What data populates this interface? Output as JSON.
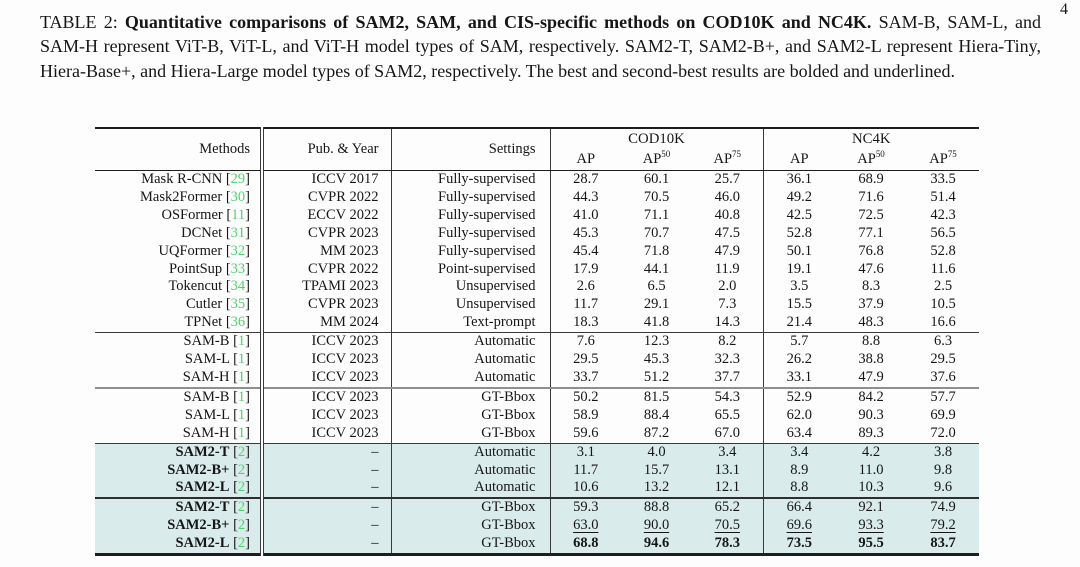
{
  "page_number": "4",
  "caption": {
    "label": "TABLE 2:",
    "bold_text": "Quantitative comparisons of SAM2, SAM, and CIS-specific methods on COD10K and NC4K.",
    "body_text": "SAM-B, SAM-L, and SAM-H represent ViT-B, ViT-L, and ViT-H model types of SAM, respectively. SAM2-T, SAM2-B+, and SAM2-L represent Hiera-Tiny, Hiera-Base+, and Hiera-Large model types of SAM2, respectively. The best and second-best results are bolded and underlined."
  },
  "colors": {
    "highlight_row": "#d9ebeb",
    "citation_green": "#53d170"
  },
  "table": {
    "headers": {
      "methods": "Methods",
      "pub_year": "Pub. & Year",
      "settings": "Settings",
      "dataset1": "COD10K",
      "dataset2": "NC4K"
    },
    "metric_headers": [
      {
        "base": "AP",
        "sup": ""
      },
      {
        "base": "AP",
        "sup": "50"
      },
      {
        "base": "AP",
        "sup": "75"
      }
    ],
    "rows": [
      {
        "method": "Mask R-CNN",
        "cite": "29",
        "pub": "ICCV 2017",
        "setting": "Fully-supervised",
        "values": [
          "28.7",
          "60.1",
          "25.7",
          "36.1",
          "68.9",
          "33.5"
        ]
      },
      {
        "method": "Mask2Former",
        "cite": "30",
        "pub": "CVPR 2022",
        "setting": "Fully-supervised",
        "values": [
          "44.3",
          "70.5",
          "46.0",
          "49.2",
          "71.6",
          "51.4"
        ]
      },
      {
        "method": "OSFormer",
        "cite": "11",
        "pub": "ECCV 2022",
        "setting": "Fully-supervised",
        "values": [
          "41.0",
          "71.1",
          "40.8",
          "42.5",
          "72.5",
          "42.3"
        ]
      },
      {
        "method": "DCNet",
        "cite": "31",
        "pub": "CVPR 2023",
        "setting": "Fully-supervised",
        "values": [
          "45.3",
          "70.7",
          "47.5",
          "52.8",
          "77.1",
          "56.5"
        ]
      },
      {
        "method": "UQFormer",
        "cite": "32",
        "pub": "MM 2023",
        "setting": "Fully-supervised",
        "values": [
          "45.4",
          "71.8",
          "47.9",
          "50.1",
          "76.8",
          "52.8"
        ]
      },
      {
        "method": "PointSup",
        "cite": "33",
        "pub": "CVPR 2022",
        "setting": "Point-supervised",
        "values": [
          "17.9",
          "44.1",
          "11.9",
          "19.1",
          "47.6",
          "11.6"
        ]
      },
      {
        "method": "Tokencut",
        "cite": "34",
        "pub": "TPAMI 2023",
        "setting": "Unsupervised",
        "values": [
          "2.6",
          "6.5",
          "2.0",
          "3.5",
          "8.3",
          "2.5"
        ]
      },
      {
        "method": "Cutler",
        "cite": "35",
        "pub": "CVPR 2023",
        "setting": "Unsupervised",
        "values": [
          "11.7",
          "29.1",
          "7.3",
          "15.5",
          "37.9",
          "10.5"
        ]
      },
      {
        "method": "TPNet",
        "cite": "36",
        "pub": "MM 2024",
        "setting": "Text-prompt",
        "values": [
          "18.3",
          "41.8",
          "14.3",
          "21.4",
          "48.3",
          "16.6"
        ]
      },
      {
        "method": "SAM-B",
        "cite": "1",
        "pub": "ICCV 2023",
        "setting": "Automatic",
        "values": [
          "7.6",
          "12.3",
          "8.2",
          "5.7",
          "8.8",
          "6.3"
        ],
        "section_start": true,
        "rule": "thin"
      },
      {
        "method": "SAM-L",
        "cite": "1",
        "pub": "ICCV 2023",
        "setting": "Automatic",
        "values": [
          "29.5",
          "45.3",
          "32.3",
          "26.2",
          "38.8",
          "29.5"
        ]
      },
      {
        "method": "SAM-H",
        "cite": "1",
        "pub": "ICCV 2023",
        "setting": "Automatic",
        "values": [
          "33.7",
          "51.2",
          "37.7",
          "33.1",
          "47.9",
          "37.6"
        ]
      },
      {
        "method": "SAM-B",
        "cite": "1",
        "pub": "ICCV 2023",
        "setting": "GT-Bbox",
        "values": [
          "50.2",
          "81.5",
          "54.3",
          "52.9",
          "84.2",
          "57.7"
        ],
        "section_start": true,
        "rule": "gray"
      },
      {
        "method": "SAM-L",
        "cite": "1",
        "pub": "ICCV 2023",
        "setting": "GT-Bbox",
        "values": [
          "58.9",
          "88.4",
          "65.5",
          "62.0",
          "90.3",
          "69.9"
        ]
      },
      {
        "method": "SAM-H",
        "cite": "1",
        "pub": "ICCV 2023",
        "setting": "GT-Bbox",
        "values": [
          "59.6",
          "87.2",
          "67.0",
          "63.4",
          "89.3",
          "72.0"
        ]
      },
      {
        "method": "SAM2-T",
        "cite": "2",
        "pub": "–",
        "setting": "Automatic",
        "values": [
          "3.1",
          "4.0",
          "3.4",
          "3.4",
          "4.2",
          "3.8"
        ],
        "highlight": true,
        "bold_method": true,
        "section_start": true,
        "rule": "thin"
      },
      {
        "method": "SAM2-B+",
        "cite": "2",
        "pub": "–",
        "setting": "Automatic",
        "values": [
          "11.7",
          "15.7",
          "13.1",
          "8.9",
          "11.0",
          "9.8"
        ],
        "highlight": true,
        "bold_method": true
      },
      {
        "method": "SAM2-L",
        "cite": "2",
        "pub": "–",
        "setting": "Automatic",
        "values": [
          "10.6",
          "13.2",
          "12.1",
          "8.8",
          "10.3",
          "9.6"
        ],
        "highlight": true,
        "bold_method": true
      },
      {
        "method": "SAM2-T",
        "cite": "2",
        "pub": "–",
        "setting": "GT-Bbox",
        "values": [
          "59.3",
          "88.8",
          "65.2",
          "66.4",
          "92.1",
          "74.9"
        ],
        "highlight": true,
        "bold_method": true,
        "section_start": true,
        "rule": "dark"
      },
      {
        "method": "SAM2-B+",
        "cite": "2",
        "pub": "–",
        "setting": "GT-Bbox",
        "values": [
          "63.0",
          "90.0",
          "70.5",
          "69.6",
          "93.3",
          "79.2"
        ],
        "highlight": true,
        "bold_method": true,
        "value_style": "underline"
      },
      {
        "method": "SAM2-L",
        "cite": "2",
        "pub": "–",
        "setting": "GT-Bbox",
        "values": [
          "68.8",
          "94.6",
          "78.3",
          "73.5",
          "95.5",
          "83.7"
        ],
        "highlight": true,
        "bold_method": true,
        "value_style": "bold"
      }
    ]
  }
}
